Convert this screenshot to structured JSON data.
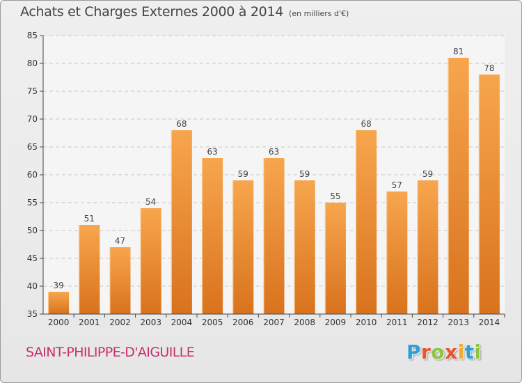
{
  "header": {
    "title": "Achats et Charges Externes 2000 à 2014",
    "unit": "(en milliers d'€)"
  },
  "footer": {
    "place": "SAINT-PHILIPPE-D'AIGUILLE",
    "logo": {
      "letters": [
        "P",
        "r",
        "o",
        "x",
        "i",
        "t",
        "i"
      ],
      "colors": [
        "#2f9fd8",
        "#e8532d",
        "#8cc63f",
        "#e8532d",
        "#f4a92a",
        "#2f9fd8",
        "#8cc63f"
      ]
    }
  },
  "chart_data": {
    "type": "bar",
    "title": "Achats et Charges Externes 2000 à 2014",
    "subtitle": "(en milliers d'€)",
    "xlabel": "",
    "ylabel": "",
    "categories": [
      "2000",
      "2001",
      "2002",
      "2003",
      "2004",
      "2005",
      "2006",
      "2007",
      "2008",
      "2009",
      "2010",
      "2011",
      "2012",
      "2013",
      "2014"
    ],
    "values": [
      39,
      51,
      47,
      54,
      68,
      63,
      59,
      63,
      59,
      55,
      68,
      57,
      59,
      81,
      78
    ],
    "data_labels": [
      "39",
      "51",
      "47",
      "54",
      "68",
      "63",
      "59",
      "63",
      "59",
      "55",
      "68",
      "57",
      "59",
      "81",
      "78"
    ],
    "ylim": [
      35,
      85
    ],
    "yticks": [
      35,
      40,
      45,
      50,
      55,
      60,
      65,
      70,
      75,
      80,
      85
    ],
    "grid": true,
    "legend": "none",
    "bar_color_top": "#f7a64e",
    "bar_color_bottom": "#d9721d"
  }
}
